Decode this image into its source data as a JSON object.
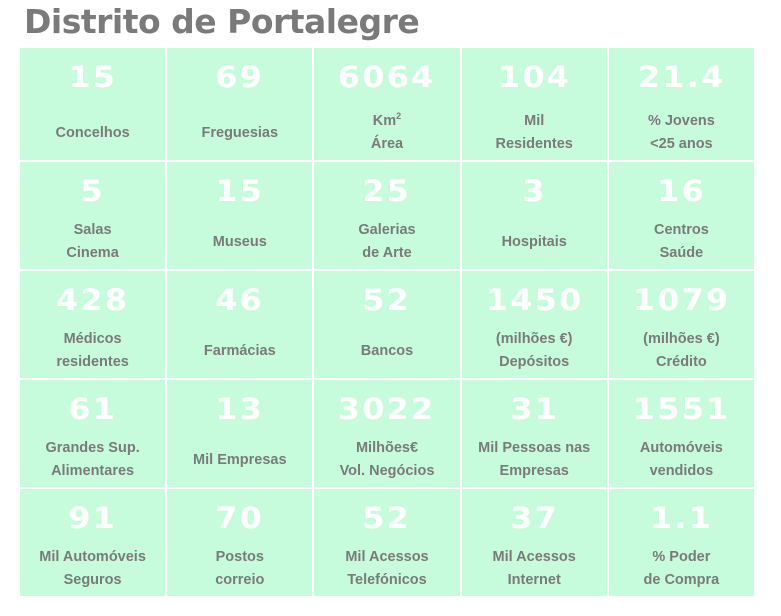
{
  "title": "Distrito de Portalegre",
  "colors": {
    "cell_background": "#c6fcdc",
    "number": "#ffffff",
    "label": "#7a7a7a"
  },
  "cells": [
    {
      "value": "15",
      "lines": [
        "Concelhos"
      ]
    },
    {
      "value": "69",
      "lines": [
        "Freguesias"
      ]
    },
    {
      "value": "6064",
      "lines": [
        "Km",
        "Área"
      ],
      "sup": "2"
    },
    {
      "value": "104",
      "lines": [
        "Mil",
        "Residentes"
      ]
    },
    {
      "value": "21.4",
      "lines": [
        "% Jovens",
        "<25 anos"
      ]
    },
    {
      "value": "5",
      "lines": [
        "Salas",
        "Cinema"
      ]
    },
    {
      "value": "15",
      "lines": [
        "Museus"
      ]
    },
    {
      "value": "25",
      "lines": [
        "Galerias",
        "de Arte"
      ]
    },
    {
      "value": "3",
      "lines": [
        "Hospitais"
      ]
    },
    {
      "value": "16",
      "lines": [
        "Centros",
        "Saúde"
      ]
    },
    {
      "value": "428",
      "lines": [
        "Médicos",
        "residentes"
      ]
    },
    {
      "value": "46",
      "lines": [
        "Farmácias"
      ]
    },
    {
      "value": "52",
      "lines": [
        "Bancos"
      ]
    },
    {
      "value": "1450",
      "lines": [
        "(milhões €)",
        "Depósitos"
      ]
    },
    {
      "value": "1079",
      "lines": [
        "(milhões €)",
        "Crédito"
      ]
    },
    {
      "value": "61",
      "lines": [
        "Grandes Sup.",
        "Alimentares"
      ]
    },
    {
      "value": "13",
      "lines": [
        "Mil Empresas"
      ]
    },
    {
      "value": "3022",
      "lines": [
        "Milhões€",
        "Vol. Negócios"
      ]
    },
    {
      "value": "31",
      "lines": [
        "Mil Pessoas nas",
        "Empresas"
      ]
    },
    {
      "value": "1551",
      "lines": [
        "Automóveis",
        "vendidos"
      ]
    },
    {
      "value": "91",
      "lines": [
        "Mil Automóveis",
        "Seguros"
      ]
    },
    {
      "value": "70",
      "lines": [
        "Postos",
        "correio"
      ]
    },
    {
      "value": "52",
      "lines": [
        "Mil Acessos",
        "Telefónicos"
      ]
    },
    {
      "value": "37",
      "lines": [
        "Mil Acessos",
        "Internet"
      ]
    },
    {
      "value": "1.1",
      "lines": [
        "% Poder",
        "de Compra"
      ]
    }
  ]
}
